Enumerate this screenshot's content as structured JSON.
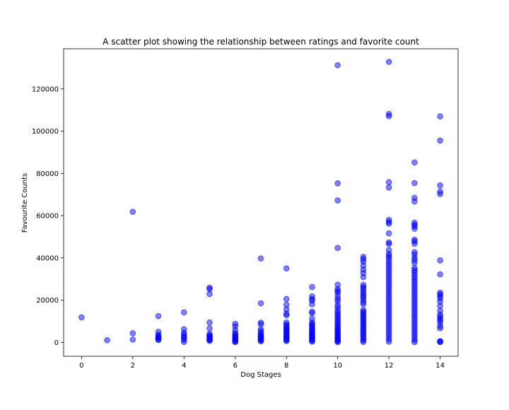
{
  "chart_data": {
    "type": "scatter",
    "title": "A scatter plot showing the relationship between ratings and favorite count",
    "xlabel": "Dog Stages",
    "ylabel": "Favourite Counts",
    "xlim": [
      -0.7,
      14.7
    ],
    "ylim": [
      -6600,
      139000
    ],
    "xticks": [
      0,
      2,
      4,
      6,
      8,
      10,
      12,
      14
    ],
    "yticks": [
      0,
      20000,
      40000,
      60000,
      80000,
      100000,
      120000
    ],
    "ytick_labels": [
      "0",
      "20000",
      "40000",
      "60000",
      "80000",
      "100000",
      "120000"
    ],
    "grid": false,
    "legend": "none",
    "marker_color": "#0000ff",
    "marker_alpha": 0.5,
    "series": [
      {
        "points": [
          [
            0,
            11800
          ],
          [
            1,
            1000
          ],
          [
            2,
            61800
          ],
          [
            2,
            4300
          ],
          [
            2,
            1300
          ],
          [
            3,
            12400
          ],
          [
            3,
            5000
          ],
          [
            3,
            3600
          ],
          [
            3,
            2900
          ],
          [
            3,
            2400
          ],
          [
            3,
            1900
          ],
          [
            3,
            1500
          ],
          [
            3,
            1100
          ],
          [
            4,
            14200
          ],
          [
            4,
            6200
          ],
          [
            4,
            4500
          ],
          [
            4,
            3600
          ],
          [
            4,
            2800
          ],
          [
            4,
            2000
          ],
          [
            4,
            1200
          ],
          [
            4,
            200
          ],
          [
            5,
            25900
          ],
          [
            5,
            25200
          ],
          [
            5,
            22900
          ],
          [
            5,
            9400
          ],
          [
            5,
            6600
          ],
          [
            5,
            4000
          ],
          [
            5,
            3400
          ],
          [
            5,
            2900
          ],
          [
            5,
            2400
          ],
          [
            5,
            1900
          ],
          [
            5,
            1500
          ],
          [
            5,
            1100
          ],
          [
            5,
            700
          ],
          [
            6,
            8800
          ],
          [
            6,
            7600
          ],
          [
            6,
            5800
          ],
          [
            6,
            4400
          ],
          [
            6,
            3700
          ],
          [
            6,
            3200
          ],
          [
            6,
            2700
          ],
          [
            6,
            2200
          ],
          [
            6,
            1700
          ],
          [
            6,
            1200
          ],
          [
            6,
            800
          ],
          [
            6,
            400
          ],
          [
            6,
            100
          ],
          [
            7,
            39700
          ],
          [
            7,
            18500
          ],
          [
            7,
            9300
          ],
          [
            7,
            8600
          ],
          [
            7,
            6200
          ],
          [
            7,
            5300
          ],
          [
            7,
            4400
          ],
          [
            7,
            3700
          ],
          [
            7,
            3100
          ],
          [
            7,
            2600
          ],
          [
            7,
            2100
          ],
          [
            7,
            1700
          ],
          [
            7,
            1300
          ],
          [
            7,
            900
          ],
          [
            7,
            500
          ],
          [
            8,
            35000
          ],
          [
            8,
            20500
          ],
          [
            8,
            17800
          ],
          [
            8,
            15600
          ],
          [
            8,
            13600
          ],
          [
            8,
            12800
          ],
          [
            8,
            9400
          ],
          [
            8,
            8500
          ],
          [
            8,
            7800
          ],
          [
            8,
            7100
          ],
          [
            8,
            6400
          ],
          [
            8,
            5800
          ],
          [
            8,
            5200
          ],
          [
            8,
            4600
          ],
          [
            8,
            4000
          ],
          [
            8,
            3500
          ],
          [
            8,
            3000
          ],
          [
            8,
            2500
          ],
          [
            8,
            2000
          ],
          [
            8,
            1500
          ],
          [
            8,
            1000
          ],
          [
            8,
            600
          ],
          [
            9,
            26200
          ],
          [
            9,
            21800
          ],
          [
            9,
            20500
          ],
          [
            9,
            19800
          ],
          [
            9,
            18000
          ],
          [
            9,
            14500
          ],
          [
            9,
            13800
          ],
          [
            9,
            11200
          ],
          [
            9,
            9400
          ],
          [
            9,
            8700
          ],
          [
            9,
            8000
          ],
          [
            9,
            7300
          ],
          [
            9,
            6600
          ],
          [
            9,
            6000
          ],
          [
            9,
            5400
          ],
          [
            9,
            4800
          ],
          [
            9,
            4300
          ],
          [
            9,
            3800
          ],
          [
            9,
            3300
          ],
          [
            9,
            2800
          ],
          [
            9,
            2300
          ],
          [
            9,
            1800
          ],
          [
            9,
            1300
          ],
          [
            9,
            800
          ],
          [
            9,
            300
          ],
          [
            10,
            131200
          ],
          [
            10,
            75300
          ],
          [
            10,
            67200
          ],
          [
            10,
            44700
          ],
          [
            10,
            27300
          ],
          [
            10,
            25200
          ],
          [
            10,
            24300
          ],
          [
            10,
            23500
          ],
          [
            10,
            21800
          ],
          [
            10,
            20500
          ],
          [
            10,
            19400
          ],
          [
            10,
            17600
          ],
          [
            10,
            16500
          ],
          [
            10,
            15200
          ],
          [
            10,
            14100
          ],
          [
            10,
            13200
          ],
          [
            10,
            12300
          ],
          [
            10,
            11400
          ],
          [
            10,
            10500
          ],
          [
            10,
            9700
          ],
          [
            10,
            8900
          ],
          [
            10,
            8100
          ],
          [
            10,
            7300
          ],
          [
            10,
            6600
          ],
          [
            10,
            5900
          ],
          [
            10,
            5300
          ],
          [
            10,
            4700
          ],
          [
            10,
            4100
          ],
          [
            10,
            3500
          ],
          [
            10,
            2900
          ],
          [
            10,
            2400
          ],
          [
            10,
            1900
          ],
          [
            10,
            1400
          ],
          [
            10,
            900
          ],
          [
            10,
            500
          ],
          [
            10,
            100
          ],
          [
            11,
            40500
          ],
          [
            11,
            39400
          ],
          [
            11,
            38200
          ],
          [
            11,
            36300
          ],
          [
            11,
            34400
          ],
          [
            11,
            32800
          ],
          [
            11,
            30900
          ],
          [
            11,
            27200
          ],
          [
            11,
            26100
          ],
          [
            11,
            25400
          ],
          [
            11,
            24200
          ],
          [
            11,
            23200
          ],
          [
            11,
            22200
          ],
          [
            11,
            21300
          ],
          [
            11,
            20200
          ],
          [
            11,
            19000
          ],
          [
            11,
            18100
          ],
          [
            11,
            15300
          ],
          [
            11,
            14500
          ],
          [
            11,
            13700
          ],
          [
            11,
            12900
          ],
          [
            11,
            12100
          ],
          [
            11,
            11300
          ],
          [
            11,
            10500
          ],
          [
            11,
            9700
          ],
          [
            11,
            8900
          ],
          [
            11,
            8100
          ],
          [
            11,
            7300
          ],
          [
            11,
            6500
          ],
          [
            11,
            5700
          ],
          [
            11,
            4900
          ],
          [
            11,
            4100
          ],
          [
            11,
            3300
          ],
          [
            11,
            2500
          ],
          [
            11,
            1700
          ],
          [
            11,
            900
          ],
          [
            11,
            200
          ],
          [
            12,
            132800
          ],
          [
            12,
            108100
          ],
          [
            12,
            107100
          ],
          [
            12,
            75800
          ],
          [
            12,
            73300
          ],
          [
            12,
            58000
          ],
          [
            12,
            57000
          ],
          [
            12,
            56200
          ],
          [
            12,
            51600
          ],
          [
            12,
            47300
          ],
          [
            12,
            46600
          ],
          [
            12,
            43700
          ],
          [
            12,
            41800
          ],
          [
            12,
            40900
          ],
          [
            12,
            40000
          ],
          [
            12,
            38700
          ],
          [
            12,
            37500
          ],
          [
            12,
            36300
          ],
          [
            12,
            35100
          ],
          [
            12,
            33900
          ],
          [
            12,
            32700
          ],
          [
            12,
            31500
          ],
          [
            12,
            30300
          ],
          [
            12,
            29100
          ],
          [
            12,
            27900
          ],
          [
            12,
            26700
          ],
          [
            12,
            25500
          ],
          [
            12,
            24300
          ],
          [
            12,
            23100
          ],
          [
            12,
            21900
          ],
          [
            12,
            20700
          ],
          [
            12,
            19500
          ],
          [
            12,
            18300
          ],
          [
            12,
            17100
          ],
          [
            12,
            15900
          ],
          [
            12,
            14700
          ],
          [
            12,
            13500
          ],
          [
            12,
            12300
          ],
          [
            12,
            11100
          ],
          [
            12,
            9900
          ],
          [
            12,
            8700
          ],
          [
            12,
            7500
          ],
          [
            12,
            6300
          ],
          [
            12,
            5100
          ],
          [
            12,
            3900
          ],
          [
            12,
            2700
          ],
          [
            12,
            1500
          ],
          [
            12,
            300
          ],
          [
            13,
            85200
          ],
          [
            13,
            75400
          ],
          [
            13,
            68400
          ],
          [
            13,
            66700
          ],
          [
            13,
            56700
          ],
          [
            13,
            55700
          ],
          [
            13,
            55000
          ],
          [
            13,
            53800
          ],
          [
            13,
            48600
          ],
          [
            13,
            47800
          ],
          [
            13,
            46700
          ],
          [
            13,
            42700
          ],
          [
            13,
            41600
          ],
          [
            13,
            40000
          ],
          [
            13,
            38900
          ],
          [
            13,
            37600
          ],
          [
            13,
            35200
          ],
          [
            13,
            34200
          ],
          [
            13,
            33100
          ],
          [
            13,
            32000
          ],
          [
            13,
            30800
          ],
          [
            13,
            29700
          ],
          [
            13,
            28600
          ],
          [
            13,
            27400
          ],
          [
            13,
            26300
          ],
          [
            13,
            25100
          ],
          [
            13,
            24000
          ],
          [
            13,
            22800
          ],
          [
            13,
            21700
          ],
          [
            13,
            20500
          ],
          [
            13,
            19400
          ],
          [
            13,
            18200
          ],
          [
            13,
            17100
          ],
          [
            13,
            15900
          ],
          [
            13,
            14800
          ],
          [
            13,
            13600
          ],
          [
            13,
            12500
          ],
          [
            13,
            11300
          ],
          [
            13,
            10200
          ],
          [
            13,
            9000
          ],
          [
            13,
            7900
          ],
          [
            13,
            6700
          ],
          [
            13,
            5600
          ],
          [
            13,
            4400
          ],
          [
            13,
            3300
          ],
          [
            13,
            2100
          ],
          [
            13,
            1000
          ],
          [
            13,
            100
          ],
          [
            14,
            107000
          ],
          [
            14,
            95500
          ],
          [
            14,
            74300
          ],
          [
            14,
            71400
          ],
          [
            14,
            70200
          ],
          [
            14,
            38800
          ],
          [
            14,
            32200
          ],
          [
            14,
            23500
          ],
          [
            14,
            22700
          ],
          [
            14,
            21800
          ],
          [
            14,
            20800
          ],
          [
            14,
            19200
          ],
          [
            14,
            17200
          ],
          [
            14,
            14900
          ],
          [
            14,
            13100
          ],
          [
            14,
            12100
          ],
          [
            14,
            11200
          ],
          [
            14,
            10400
          ],
          [
            14,
            9300
          ],
          [
            14,
            7700
          ],
          [
            14,
            6700
          ],
          [
            14,
            600
          ],
          [
            14,
            300
          ],
          [
            14,
            100
          ]
        ]
      }
    ]
  }
}
